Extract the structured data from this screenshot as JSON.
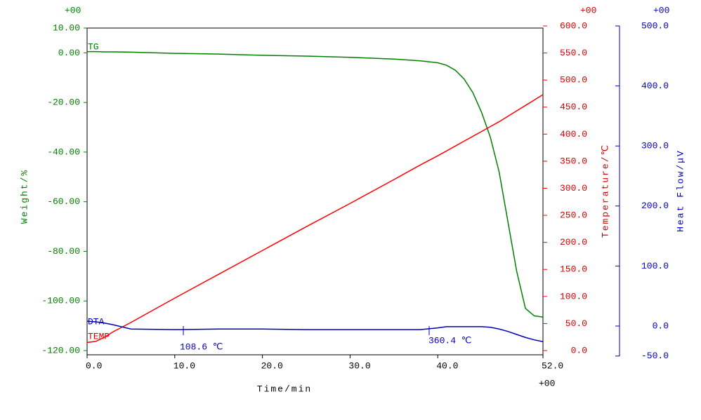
{
  "chart_data": {
    "type": "line",
    "xlabel": "Time/min",
    "ylabel": "Weight/%",
    "y2label": "Temperature/℃",
    "y3label": "Heat Flow/μV",
    "x_exponent": "+00",
    "y_exponent": "+00",
    "y2_exponent": "+00",
    "y3_exponent": "+00",
    "x": [
      0,
      1,
      2,
      3,
      5,
      10,
      15,
      20,
      25,
      30,
      35,
      38,
      40,
      41,
      42,
      43,
      44,
      45,
      46,
      47,
      48,
      49,
      50,
      51,
      52
    ],
    "xlim": [
      0,
      52
    ],
    "xticks": [
      {
        "value": 0,
        "label": "0.0"
      },
      {
        "value": 10,
        "label": "10.0"
      },
      {
        "value": 20,
        "label": "20.0"
      },
      {
        "value": 30,
        "label": "30.0"
      },
      {
        "value": 40,
        "label": "40.0"
      },
      {
        "value": 52,
        "label": "52.0"
      }
    ],
    "ylim": [
      -120,
      10
    ],
    "yticks": [
      {
        "value": 10,
        "label": "10.00"
      },
      {
        "value": 0,
        "label": "0.00"
      },
      {
        "value": -20,
        "label": "-20.00"
      },
      {
        "value": -40,
        "label": "-40.00"
      },
      {
        "value": -60,
        "label": "-60.00"
      },
      {
        "value": -80,
        "label": "-80.00"
      },
      {
        "value": -100,
        "label": "-100.00"
      },
      {
        "value": -120,
        "label": "-120.00"
      }
    ],
    "y2lim": [
      0,
      600
    ],
    "y2ticks": [
      {
        "value": 0,
        "label": "0.0"
      },
      {
        "value": 50,
        "label": "50.0"
      },
      {
        "value": 100,
        "label": "100.0"
      },
      {
        "value": 150,
        "label": "150.0"
      },
      {
        "value": 200,
        "label": "200.0"
      },
      {
        "value": 250,
        "label": "250.0"
      },
      {
        "value": 300,
        "label": "300.0"
      },
      {
        "value": 350,
        "label": "350.0"
      },
      {
        "value": 400,
        "label": "400.0"
      },
      {
        "value": 450,
        "label": "450.0"
      },
      {
        "value": 500,
        "label": "500.0"
      },
      {
        "value": 550,
        "label": "550.0"
      },
      {
        "value": 600,
        "label": "600.0"
      }
    ],
    "y3lim": [
      -50,
      500
    ],
    "y3ticks": [
      {
        "value": -50,
        "label": "-50.0"
      },
      {
        "value": 0,
        "label": "0.0"
      },
      {
        "value": 100,
        "label": "100.0"
      },
      {
        "value": 200,
        "label": "200.0"
      },
      {
        "value": 300,
        "label": "300.0"
      },
      {
        "value": 400,
        "label": "400.0"
      },
      {
        "value": 500,
        "label": "500.0"
      }
    ],
    "series": [
      {
        "name": "TG",
        "color": "#008000",
        "axis": "y",
        "values": [
          0.5,
          0.5,
          0.4,
          0.4,
          0.3,
          -0.2,
          -0.5,
          -1.0,
          -1.3,
          -1.8,
          -2.5,
          -3.2,
          -4.0,
          -5.0,
          -7.0,
          -10.5,
          -16,
          -24,
          -34,
          -48,
          -68,
          -88,
          -103,
          -106,
          -106.5
        ]
      },
      {
        "name": "TEMP",
        "color": "#ff0000",
        "axis": "y2",
        "values": [
          15,
          17,
          25,
          35,
          52,
          97,
          141,
          185,
          229,
          272,
          316,
          343,
          360,
          369,
          378,
          387,
          396,
          405,
          414,
          423,
          433,
          443,
          453,
          463,
          473
        ]
      },
      {
        "name": "DTA",
        "color": "#0000c0",
        "axis": "y3",
        "values": [
          8,
          7,
          5,
          2,
          -5,
          -6,
          -5,
          -5,
          -6,
          -6,
          -6,
          -6,
          -3,
          -1,
          -1,
          -1,
          -1,
          -1,
          -2,
          -5,
          -9,
          -14,
          -19,
          -23,
          -26
        ]
      }
    ],
    "annotations": [
      "108.6 ℃",
      "360.4 ℃"
    ]
  }
}
